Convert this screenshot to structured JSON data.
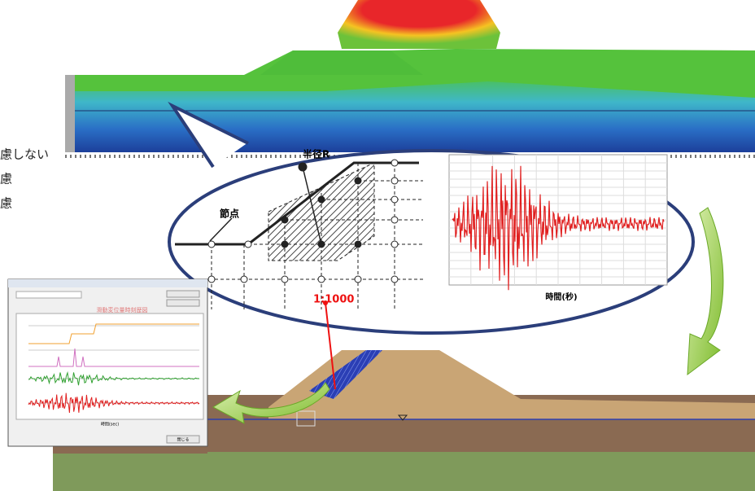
{
  "bubble": {
    "node_label": "節点",
    "radius_label": "半径R",
    "scale_label": "1:1000",
    "waveform_x_label": "時間(秒)"
  },
  "side_text": [
    "慮しない",
    "慮",
    "慮"
  ],
  "window": {
    "title": "滑動変位量時刻歴図",
    "x_label": "時間(sec)",
    "close_button": "閉じる"
  }
}
